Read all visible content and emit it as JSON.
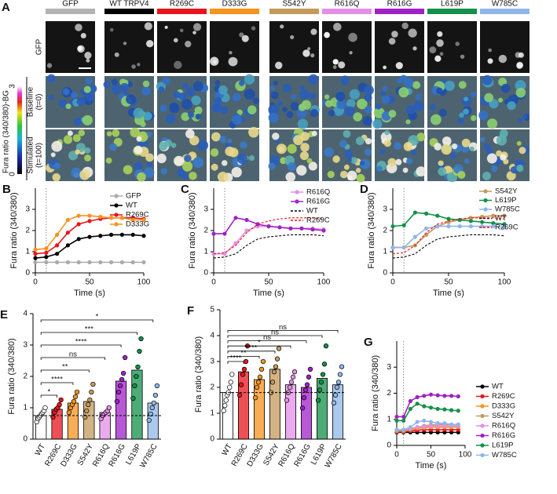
{
  "panel_a": {
    "panel": "A",
    "columns": [
      {
        "label": "GFP",
        "color": "#b3b3b3"
      },
      {
        "label": "WT TRPV4",
        "color": "#000000"
      },
      {
        "label": "R269C",
        "color": "#e8141c"
      },
      {
        "label": "D333G",
        "color": "#f7931e"
      },
      {
        "label": "S542Y",
        "color": "#c49a5a"
      },
      {
        "label": "R616Q",
        "color": "#e58ee8"
      },
      {
        "label": "R616G",
        "color": "#a020c8"
      },
      {
        "label": "L619P",
        "color": "#13904a"
      },
      {
        "label": "W785C",
        "color": "#8fb6ea"
      }
    ],
    "rows": [
      {
        "lines": [
          "GFP"
        ]
      },
      {
        "lines": [
          "Baseline",
          "(t=0)"
        ]
      },
      {
        "lines": [
          "Stimulated",
          "(t=100)"
        ]
      }
    ],
    "colorbar_label": "Fura ratio (340/380)-BG",
    "colorbar_lim": [
      0,
      3
    ],
    "colorbar_ticks": [
      0,
      3
    ]
  },
  "chart_data": [
    {
      "type": "line",
      "panel": "B",
      "x_label": "Time (s)",
      "y_label": "Fura ratio (340/380)",
      "x": [
        0,
        10,
        20,
        30,
        40,
        50,
        60,
        70,
        80,
        90,
        100
      ],
      "xlim": [
        0,
        100
      ],
      "xticks": [
        0,
        50,
        100
      ],
      "ylim": [
        0,
        4
      ],
      "yticks": [
        0,
        1,
        2,
        3
      ],
      "vline": 10,
      "series": [
        {
          "name": "GFP",
          "color": "#aaaaaa",
          "style": "solid",
          "markers": true,
          "values": [
            0.5,
            0.5,
            0.5,
            0.5,
            0.5,
            0.5,
            0.5,
            0.5,
            0.5,
            0.5,
            0.5
          ]
        },
        {
          "name": "WT",
          "color": "#000000",
          "style": "solid",
          "markers": true,
          "values": [
            0.7,
            0.75,
            0.9,
            1.3,
            1.6,
            1.7,
            1.75,
            1.8,
            1.8,
            1.8,
            1.75
          ]
        },
        {
          "name": "R269C",
          "color": "#e8141c",
          "style": "solid",
          "markers": true,
          "values": [
            0.9,
            0.95,
            1.3,
            1.9,
            2.3,
            2.45,
            2.55,
            2.6,
            2.6,
            2.6,
            2.55
          ]
        },
        {
          "name": "D333G",
          "color": "#f7931e",
          "style": "solid",
          "markers": true,
          "values": [
            1.1,
            1.15,
            1.8,
            2.5,
            2.7,
            2.7,
            2.65,
            2.6,
            2.6,
            2.5,
            2.5
          ]
        }
      ]
    },
    {
      "type": "line",
      "panel": "C",
      "x_label": "Time (s)",
      "y_label": "Fura ratio (340/380)",
      "x": [
        0,
        10,
        20,
        30,
        40,
        50,
        60,
        70,
        80,
        90,
        100
      ],
      "xlim": [
        0,
        100
      ],
      "xticks": [
        0,
        50,
        100
      ],
      "ylim": [
        0,
        4
      ],
      "yticks": [
        0,
        1,
        2,
        3
      ],
      "vline": 10,
      "series": [
        {
          "name": "R616Q",
          "color": "#e58ee8",
          "style": "solid",
          "markers": true,
          "values": [
            0.9,
            0.9,
            1.4,
            2.0,
            2.2,
            2.2,
            2.15,
            2.1,
            2.1,
            2.1,
            2.05
          ]
        },
        {
          "name": "R616G",
          "color": "#a020c8",
          "style": "solid",
          "markers": true,
          "values": [
            1.85,
            1.85,
            2.6,
            2.5,
            2.3,
            2.2,
            2.15,
            2.1,
            2.1,
            2.05,
            2.0
          ]
        },
        {
          "name": "WT",
          "color": "#000000",
          "style": "dashed",
          "markers": false,
          "values": [
            0.7,
            0.75,
            0.9,
            1.3,
            1.6,
            1.7,
            1.75,
            1.8,
            1.8,
            1.8,
            1.75
          ]
        },
        {
          "name": "R269C",
          "color": "#e8141c",
          "style": "dashed",
          "markers": false,
          "values": [
            0.9,
            0.95,
            1.3,
            1.9,
            2.3,
            2.45,
            2.55,
            2.6,
            2.6,
            2.6,
            2.55
          ]
        }
      ]
    },
    {
      "type": "line",
      "panel": "D",
      "x_label": "Time (s)",
      "y_label": "Fura ratio (340/380)",
      "x": [
        0,
        10,
        20,
        30,
        40,
        50,
        60,
        70,
        80,
        90,
        100
      ],
      "xlim": [
        0,
        100
      ],
      "xticks": [
        0,
        50,
        100
      ],
      "ylim": [
        0,
        4
      ],
      "yticks": [
        0,
        1,
        2,
        3
      ],
      "vline": 10,
      "series": [
        {
          "name": "S542Y",
          "color": "#c49a5a",
          "style": "solid",
          "markers": true,
          "values": [
            1.2,
            1.2,
            1.3,
            1.8,
            2.2,
            2.4,
            2.5,
            2.6,
            2.65,
            2.7,
            2.7
          ]
        },
        {
          "name": "L619P",
          "color": "#13904a",
          "style": "solid",
          "markers": true,
          "values": [
            2.2,
            2.25,
            2.85,
            2.8,
            2.7,
            2.55,
            2.5,
            2.45,
            2.4,
            2.35,
            2.3
          ]
        },
        {
          "name": "W785C",
          "color": "#8fb6ea",
          "style": "solid",
          "markers": true,
          "values": [
            1.2,
            1.2,
            1.7,
            2.1,
            2.2,
            2.2,
            2.2,
            2.2,
            2.2,
            2.2,
            2.15
          ]
        },
        {
          "name": "WT",
          "color": "#000000",
          "style": "dashed",
          "markers": false,
          "values": [
            0.7,
            0.75,
            0.9,
            1.3,
            1.6,
            1.7,
            1.75,
            1.8,
            1.8,
            1.8,
            1.75
          ]
        },
        {
          "name": "R269C",
          "color": "#e8141c",
          "style": "dashed",
          "markers": false,
          "values": [
            0.9,
            0.95,
            1.3,
            1.9,
            2.3,
            2.45,
            2.55,
            2.6,
            2.6,
            2.6,
            2.55
          ]
        }
      ]
    },
    {
      "type": "bar",
      "panel": "E",
      "y_label": "Fura ratio (340/380)",
      "categories": [
        "WT",
        "R269C",
        "D333G",
        "S542Y",
        "R616Q",
        "R616G",
        "L619P",
        "W785C"
      ],
      "values": [
        0.75,
        0.95,
        1.15,
        1.2,
        0.85,
        1.85,
        2.2,
        1.15
      ],
      "colors": [
        "#ffffff",
        "#e8141c",
        "#f7931e",
        "#c49a5a",
        "#e58ee8",
        "#a020c8",
        "#13904a",
        "#8fb6ea"
      ],
      "points": [
        [
          0.55,
          0.65,
          0.7,
          0.75,
          0.8,
          0.85,
          0.9,
          1.0
        ],
        [
          0.7,
          0.85,
          0.95,
          1.0,
          1.1,
          1.25
        ],
        [
          0.85,
          1.0,
          1.1,
          1.2,
          1.35,
          1.5
        ],
        [
          0.7,
          0.9,
          1.1,
          1.25,
          1.5,
          1.75
        ],
        [
          0.65,
          0.75,
          0.8,
          0.85,
          0.9,
          1.0
        ],
        [
          1.2,
          1.5,
          1.7,
          1.9,
          2.1,
          2.6
        ],
        [
          1.3,
          1.7,
          2.0,
          2.3,
          2.8,
          3.2
        ],
        [
          0.6,
          0.8,
          1.0,
          1.15,
          1.4,
          1.7
        ]
      ],
      "ref_line": 0.75,
      "ylim": [
        0,
        4
      ],
      "yticks": [
        0,
        1,
        2,
        3,
        4
      ],
      "comparisons": [
        {
          "to": "R269C",
          "label": "*"
        },
        {
          "to": "D333G",
          "label": "****"
        },
        {
          "to": "S542Y",
          "label": "**"
        },
        {
          "to": "R616Q",
          "label": "ns"
        },
        {
          "to": "R616G",
          "label": "****"
        },
        {
          "to": "L619P",
          "label": "***"
        },
        {
          "to": "W785C",
          "label": "*"
        }
      ]
    },
    {
      "type": "bar",
      "panel": "F",
      "y_label": "Fura ratio (340/380)",
      "categories": [
        "WT",
        "R269C",
        "D333G",
        "S542Y",
        "R616Q",
        "R616G",
        "L619P",
        "W785C"
      ],
      "values": [
        1.8,
        2.6,
        2.3,
        2.7,
        2.1,
        2.0,
        2.35,
        2.1
      ],
      "colors": [
        "#ffffff",
        "#e8141c",
        "#f7931e",
        "#c49a5a",
        "#e58ee8",
        "#a020c8",
        "#13904a",
        "#8fb6ea"
      ],
      "points": [
        [
          1.1,
          1.3,
          1.5,
          1.7,
          1.8,
          2.0,
          2.2,
          2.5
        ],
        [
          1.7,
          2.1,
          2.5,
          2.7,
          3.0,
          3.6
        ],
        [
          1.6,
          2.0,
          2.2,
          2.4,
          2.7,
          3.0
        ],
        [
          1.8,
          2.2,
          2.6,
          2.8,
          3.1,
          3.5
        ],
        [
          1.5,
          1.8,
          2.0,
          2.2,
          2.4,
          2.6
        ],
        [
          1.2,
          1.6,
          1.9,
          2.1,
          2.4,
          2.7
        ],
        [
          1.5,
          1.9,
          2.2,
          2.5,
          2.9,
          3.6
        ],
        [
          1.4,
          1.7,
          2.0,
          2.2,
          2.5,
          2.8
        ]
      ],
      "ref_line": 1.8,
      "ylim": [
        0,
        5
      ],
      "yticks": [
        0,
        1,
        2,
        3,
        4,
        5
      ],
      "comparisons": [
        {
          "to": "R269C",
          "label": "****"
        },
        {
          "to": "D333G",
          "label": "**"
        },
        {
          "to": "S542Y",
          "label": "****"
        },
        {
          "to": "R616Q",
          "label": "*"
        },
        {
          "to": "R616G",
          "label": "ns"
        },
        {
          "to": "L619P",
          "label": "ns"
        },
        {
          "to": "W785C",
          "label": "ns"
        }
      ]
    },
    {
      "type": "line",
      "panel": "G",
      "x_label": "Time (s)",
      "y_label": "Fura ratio (340/380)",
      "x": [
        0,
        10,
        20,
        30,
        40,
        50,
        60,
        70,
        80,
        90
      ],
      "xlim": [
        0,
        100
      ],
      "xticks": [
        0,
        50,
        100
      ],
      "ylim": [
        0,
        4
      ],
      "yticks": [
        0,
        1,
        2,
        3
      ],
      "vline": 10,
      "series": [
        {
          "name": "WT",
          "color": "#000000",
          "style": "solid",
          "markers": true,
          "values": [
            0.5,
            0.5,
            0.5,
            0.5,
            0.5,
            0.5,
            0.5,
            0.5,
            0.5,
            0.5
          ]
        },
        {
          "name": "R269C",
          "color": "#e8141c",
          "style": "solid",
          "markers": true,
          "values": [
            0.52,
            0.52,
            0.55,
            0.58,
            0.6,
            0.6,
            0.6,
            0.6,
            0.6,
            0.6
          ]
        },
        {
          "name": "D333G",
          "color": "#f7931e",
          "style": "solid",
          "markers": true,
          "values": [
            0.55,
            0.55,
            0.6,
            0.65,
            0.68,
            0.7,
            0.7,
            0.7,
            0.7,
            0.7
          ]
        },
        {
          "name": "S542Y",
          "color": "#c49a5a",
          "style": "solid",
          "markers": true,
          "values": [
            0.55,
            0.55,
            0.6,
            0.7,
            0.75,
            0.78,
            0.8,
            0.8,
            0.8,
            0.8
          ]
        },
        {
          "name": "R616Q",
          "color": "#e58ee8",
          "style": "solid",
          "markers": true,
          "values": [
            0.6,
            0.6,
            0.65,
            0.7,
            0.72,
            0.74,
            0.75,
            0.75,
            0.75,
            0.75
          ]
        },
        {
          "name": "R616G",
          "color": "#a020c8",
          "style": "solid",
          "markers": true,
          "values": [
            1.1,
            1.1,
            1.7,
            1.85,
            1.9,
            1.95,
            1.92,
            1.9,
            1.9,
            1.88
          ]
        },
        {
          "name": "L619P",
          "color": "#13904a",
          "style": "solid",
          "markers": true,
          "values": [
            0.95,
            0.95,
            1.4,
            1.6,
            1.5,
            1.45,
            1.4,
            1.38,
            1.35,
            1.33
          ]
        },
        {
          "name": "W785C",
          "color": "#8fb6ea",
          "style": "solid",
          "markers": true,
          "values": [
            0.6,
            0.6,
            0.7,
            0.9,
            0.95,
            0.9,
            0.85,
            0.85,
            0.8,
            0.8
          ]
        }
      ]
    }
  ]
}
